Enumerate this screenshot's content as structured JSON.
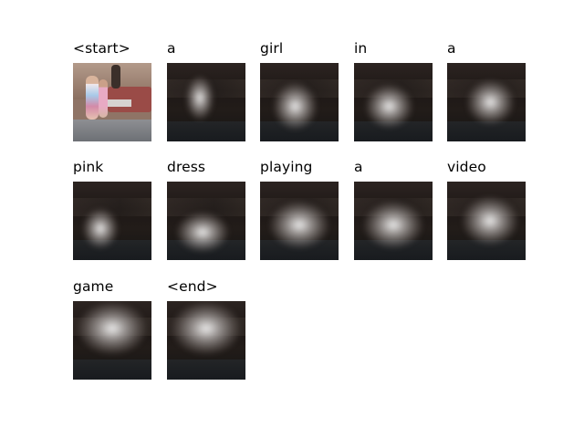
{
  "words": [
    "<start>",
    "a",
    "girl",
    "in",
    "a",
    "pink",
    "dress",
    "playing",
    "a",
    "video",
    "game",
    "<end>"
  ],
  "attention_focus": [
    null,
    {
      "fx": 0.42,
      "fy": 0.45,
      "w": 0.35,
      "h": 0.55
    },
    {
      "fx": 0.45,
      "fy": 0.55,
      "w": 0.55,
      "h": 0.6
    },
    {
      "fx": 0.45,
      "fy": 0.55,
      "w": 0.6,
      "h": 0.55
    },
    {
      "fx": 0.55,
      "fy": 0.5,
      "w": 0.6,
      "h": 0.55
    },
    {
      "fx": 0.35,
      "fy": 0.6,
      "w": 0.45,
      "h": 0.5
    },
    {
      "fx": 0.45,
      "fy": 0.65,
      "w": 0.65,
      "h": 0.5
    },
    {
      "fx": 0.5,
      "fy": 0.55,
      "w": 0.75,
      "h": 0.6
    },
    {
      "fx": 0.5,
      "fy": 0.55,
      "w": 0.75,
      "h": 0.6
    },
    {
      "fx": 0.55,
      "fy": 0.5,
      "w": 0.7,
      "h": 0.6
    },
    {
      "fx": 0.5,
      "fy": 0.35,
      "w": 0.85,
      "h": 0.65
    },
    {
      "fx": 0.5,
      "fy": 0.35,
      "w": 0.85,
      "h": 0.65
    }
  ]
}
